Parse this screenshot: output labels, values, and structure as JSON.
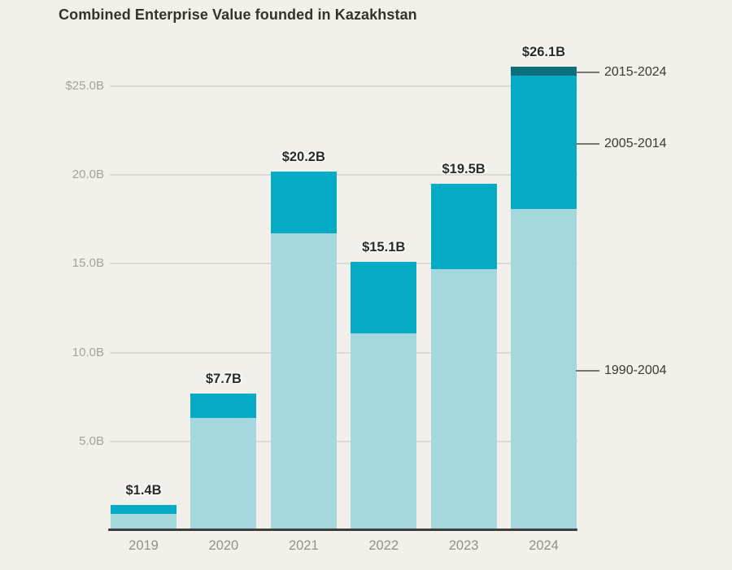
{
  "title": "Combined Enterprise Value founded in Kazakhstan",
  "colors": {
    "background": "#F2F0EA",
    "title": "#34322D",
    "axis_line": "#3E3D39",
    "gridline": "#DBDAD3",
    "y_tick_label": "#A4A29B",
    "x_tick_label": "#92908A",
    "value_label": "#2B2A26",
    "legend_label": "#3B3A35",
    "legend_tick": "#76756F"
  },
  "chart_data": {
    "type": "bar",
    "stacked": true,
    "title": "Combined Enterprise Value founded in Kazakhstan",
    "categories": [
      "2019",
      "2020",
      "2021",
      "2022",
      "2023",
      "2024"
    ],
    "series": [
      {
        "name": "1990-2004",
        "color": "#A5D8DE",
        "values": [
          0.9,
          6.3,
          16.7,
          11.1,
          14.7,
          18.1
        ]
      },
      {
        "name": "2005-2014",
        "color": "#05ABC4",
        "values": [
          0.5,
          1.4,
          3.5,
          4.0,
          4.8,
          7.5
        ]
      },
      {
        "name": "2015-2024",
        "color": "#0D6E7C",
        "values": [
          0,
          0,
          0,
          0,
          0,
          0.5
        ]
      }
    ],
    "totals": [
      "$1.4B",
      "$7.7B",
      "$20.2B",
      "$15.1B",
      "$19.5B",
      "$26.1B"
    ],
    "y_axis": {
      "min": 0,
      "max": 26.3,
      "ticks": [
        {
          "label": "$25.0B",
          "value": 25
        },
        {
          "label": "20.0B",
          "value": 20
        },
        {
          "label": "15.0B",
          "value": 15
        },
        {
          "label": "10.0B",
          "value": 10
        },
        {
          "label": "5.0B",
          "value": 5
        }
      ]
    },
    "grid": "horizontal",
    "legend": {
      "position": "right",
      "entries": [
        "2015-2024",
        "2005-2014",
        "1990-2004"
      ]
    }
  }
}
